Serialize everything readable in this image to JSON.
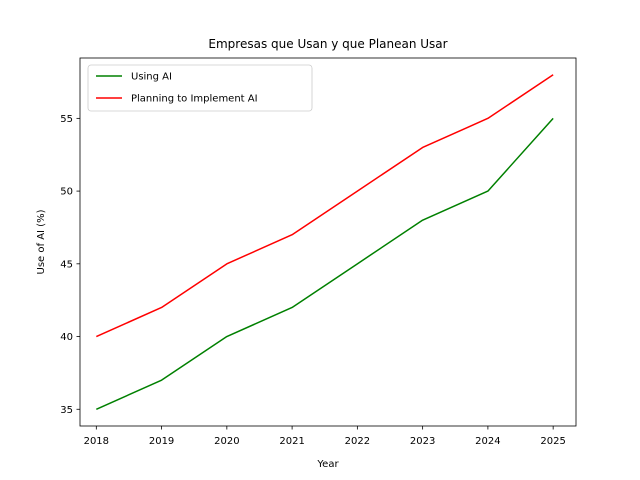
{
  "chart_data": {
    "type": "line",
    "title": "Empresas que Usan y que Planean Usar",
    "xlabel": "Year",
    "ylabel": "Use of AI (%)",
    "x": [
      2018,
      2019,
      2020,
      2021,
      2022,
      2023,
      2024,
      2025
    ],
    "xlim": [
      2017.75,
      2025.35
    ],
    "ylim": [
      33.85,
      59.15
    ],
    "yticks": [
      35,
      40,
      45,
      50,
      55
    ],
    "grid": false,
    "legend_position": "top-left",
    "series": [
      {
        "name": "Using AI",
        "color": "#008000",
        "values": [
          35,
          37,
          40,
          42,
          45,
          48,
          50,
          55
        ]
      },
      {
        "name": "Planning to Implement AI",
        "color": "#ff0000",
        "values": [
          40,
          42,
          45,
          47,
          50,
          53,
          55,
          58
        ]
      }
    ]
  }
}
